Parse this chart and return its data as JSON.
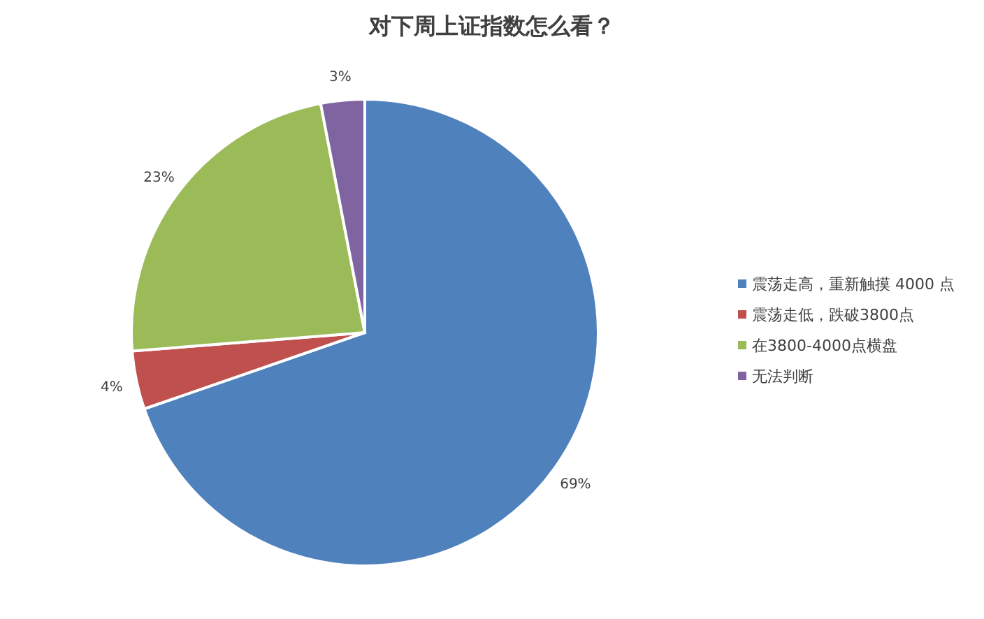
{
  "chart_data": {
    "type": "pie",
    "title": "对下周上证指数怎么看？",
    "categories": [
      "震荡走高，重新触摸 4000 点",
      "震荡走低，跌破3800点",
      "在3800-4000点横盘",
      "无法判断"
    ],
    "values": [
      69,
      4,
      23,
      3
    ],
    "colors": [
      "#4f81bd",
      "#c0504d",
      "#9bbb59",
      "#8064a2"
    ],
    "value_labels": [
      "69%",
      "4%",
      "23%",
      "3%"
    ],
    "legend": "right"
  }
}
